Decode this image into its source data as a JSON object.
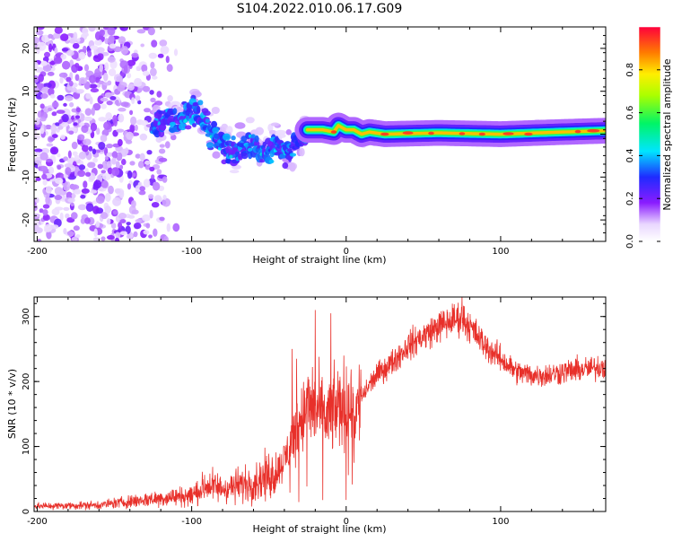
{
  "title": "S104.2022.010.06.17.G09",
  "chart_data": [
    {
      "type": "heatmap",
      "xlabel": "Height of straight line (km)",
      "ylabel": "Frequency (Hz)",
      "xlim": [
        -202,
        168
      ],
      "ylim": [
        -25,
        25
      ],
      "xticks": [
        -200,
        -100,
        0,
        100
      ],
      "yticks": [
        -20,
        -10,
        0,
        10,
        20
      ],
      "colorbar": {
        "label": "Normalized spectral amplitude",
        "range": [
          0.0,
          1.0
        ],
        "ticks": [
          0.0,
          0.2,
          0.4,
          0.6,
          0.8
        ]
      },
      "features": [
        {
          "name": "scattered-noise",
          "x_range": [
            -202,
            -125
          ],
          "y_range": [
            -25,
            25
          ],
          "amplitude": 0.15
        },
        {
          "name": "wandering-signal",
          "x_range": [
            -125,
            -25
          ],
          "y_range": [
            -10,
            8
          ],
          "amplitude": 0.35
        },
        {
          "name": "stable-tone",
          "x_range": [
            -25,
            168
          ],
          "y_center": 0.5,
          "amplitude": 0.7
        }
      ],
      "track": [
        [
          -125,
          2
        ],
        [
          -115,
          3
        ],
        [
          -105,
          4
        ],
        [
          -97,
          6
        ],
        [
          -92,
          3
        ],
        [
          -87,
          0
        ],
        [
          -80,
          -3
        ],
        [
          -72,
          -5
        ],
        [
          -62,
          -2
        ],
        [
          -55,
          -4
        ],
        [
          -45,
          -3
        ],
        [
          -38,
          -4
        ],
        [
          -30,
          -2
        ],
        [
          -25,
          1
        ],
        [
          -15,
          1
        ],
        [
          -8,
          0.5
        ],
        [
          -5,
          2
        ],
        [
          0,
          1
        ],
        [
          5,
          1
        ],
        [
          10,
          0
        ],
        [
          15,
          0.5
        ],
        [
          25,
          0
        ],
        [
          60,
          0.3
        ],
        [
          100,
          0
        ],
        [
          140,
          0.5
        ],
        [
          168,
          0.8
        ]
      ]
    },
    {
      "type": "line",
      "xlabel": "Height of straight line (km)",
      "ylabel": "SNR (10 * v/v)",
      "xlim": [
        -202,
        168
      ],
      "ylim": [
        0,
        330
      ],
      "xticks": [
        -200,
        -100,
        0,
        100
      ],
      "yticks": [
        0,
        100,
        200,
        300
      ],
      "series": [
        {
          "name": "SNR",
          "color": "#e8302a",
          "envelope": [
            [
              -202,
              8
            ],
            [
              -160,
              10
            ],
            [
              -130,
              18
            ],
            [
              -100,
              25
            ],
            [
              -90,
              40
            ],
            [
              -80,
              35
            ],
            [
              -70,
              40
            ],
            [
              -60,
              45
            ],
            [
              -50,
              55
            ],
            [
              -45,
              60
            ],
            [
              -40,
              80
            ],
            [
              -35,
              110
            ],
            [
              -30,
              140
            ],
            [
              -25,
              160
            ],
            [
              -20,
              160
            ],
            [
              -15,
              145
            ],
            [
              -10,
              150
            ],
            [
              -5,
              160
            ],
            [
              0,
              170
            ],
            [
              5,
              150
            ],
            [
              10,
              175
            ],
            [
              15,
              195
            ],
            [
              20,
              210
            ],
            [
              30,
              230
            ],
            [
              40,
              255
            ],
            [
              50,
              270
            ],
            [
              60,
              285
            ],
            [
              70,
              295
            ],
            [
              75,
              298
            ],
            [
              80,
              285
            ],
            [
              90,
              255
            ],
            [
              100,
              235
            ],
            [
              110,
              215
            ],
            [
              120,
              210
            ],
            [
              130,
              210
            ],
            [
              140,
              215
            ],
            [
              150,
              218
            ],
            [
              160,
              220
            ],
            [
              168,
              225
            ]
          ],
          "spikes": [
            [
              -20,
              310
            ],
            [
              -10,
              305
            ],
            [
              5,
              280
            ],
            [
              5,
              75
            ],
            [
              -35,
              250
            ],
            [
              -32,
              235
            ],
            [
              75,
              330
            ]
          ]
        }
      ]
    }
  ]
}
